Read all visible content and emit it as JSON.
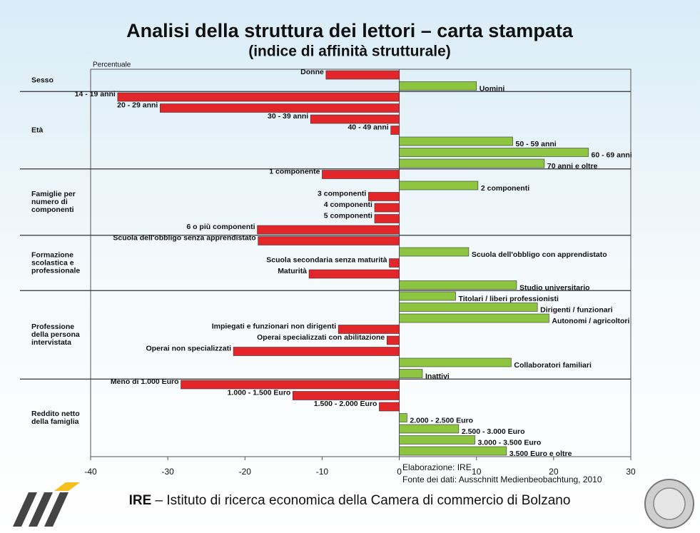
{
  "chart_data": {
    "type": "bar",
    "orientation": "horizontal",
    "title": "Analisi della struttura dei lettori – carta stampata",
    "subtitle": "(indice di affinità strutturale)",
    "axis_label": "Percentuale",
    "negative_color": "#e3262a",
    "positive_color": "#8dc540",
    "xlim": [
      -40,
      30
    ],
    "xticks": [
      -40,
      -30,
      -20,
      -10,
      0,
      10,
      20,
      30
    ],
    "groups": [
      {
        "label_lines": [
          "Sesso"
        ],
        "categories": [
          "Donne",
          "Uomini"
        ],
        "values": [
          -9.5,
          10
        ]
      },
      {
        "label_lines": [
          "Età"
        ],
        "categories": [
          "14 - 19 anni",
          "20 - 29 anni",
          "30 - 39 anni",
          "40 - 49 anni",
          "50 - 59 anni",
          "60 - 69 anni",
          "70 anni e oltre"
        ],
        "values": [
          -36.5,
          -31,
          -11.5,
          -1.1,
          14.7,
          24.5,
          18.8
        ]
      },
      {
        "label_lines": [
          "Famiglie per",
          "numero di",
          "componenti"
        ],
        "categories": [
          "1 componente",
          "2 componenti",
          "3 componenti",
          "4 componenti",
          "5 componenti",
          "6 o più componenti"
        ],
        "values": [
          -10,
          10.2,
          -4,
          -3.2,
          -3.2,
          -18.4
        ]
      },
      {
        "label_lines": [
          "Formazione",
          "scolastica e",
          "professionale"
        ],
        "categories": [
          "Scuola dell'obbligo senza apprendistato",
          "Scuola dell'obbligo con apprendistato",
          "Scuola secondaria senza maturità",
          "Maturità",
          "Studio universitario"
        ],
        "values": [
          -18.3,
          9,
          -1.3,
          -11.7,
          15.2
        ]
      },
      {
        "label_lines": [
          "Professione",
          "della persona",
          "intervistata"
        ],
        "categories": [
          "Titolari / liberi professionisti",
          "Dirigenti / funzionari",
          "Autonomi / agricoltori",
          "Impiegati e funzionari non dirigenti",
          "Operai specializzati con abilitazione",
          "Operai non specializzati",
          "Collaboratori familiari",
          "Inattivi"
        ],
        "values": [
          7.3,
          17.9,
          19.4,
          -7.9,
          -1.6,
          -21.5,
          14.5,
          3
        ]
      },
      {
        "label_lines": [
          "Reddito netto",
          "della famiglia"
        ],
        "categories": [
          "Meno di 1.000 Euro",
          "1.000 - 1.500 Euro",
          "1.500 - 2.000 Euro",
          "2.000 - 2.500 Euro",
          "2.500 - 3.000 Euro",
          "3.000 - 3.500 Euro",
          "3.500 Euro e oltre"
        ],
        "values": [
          -28.3,
          -13.8,
          -2.6,
          1,
          7.7,
          9.8,
          13.9
        ]
      }
    ],
    "notes": [
      "Elaborazione: IRE",
      "Fonte dei dati: Ausschnitt Medienbeobachtung, 2010"
    ],
    "footer_bold": "IRE",
    "footer_text": "– Istituto di ricerca economica della Camera di commercio di Bolzano"
  }
}
